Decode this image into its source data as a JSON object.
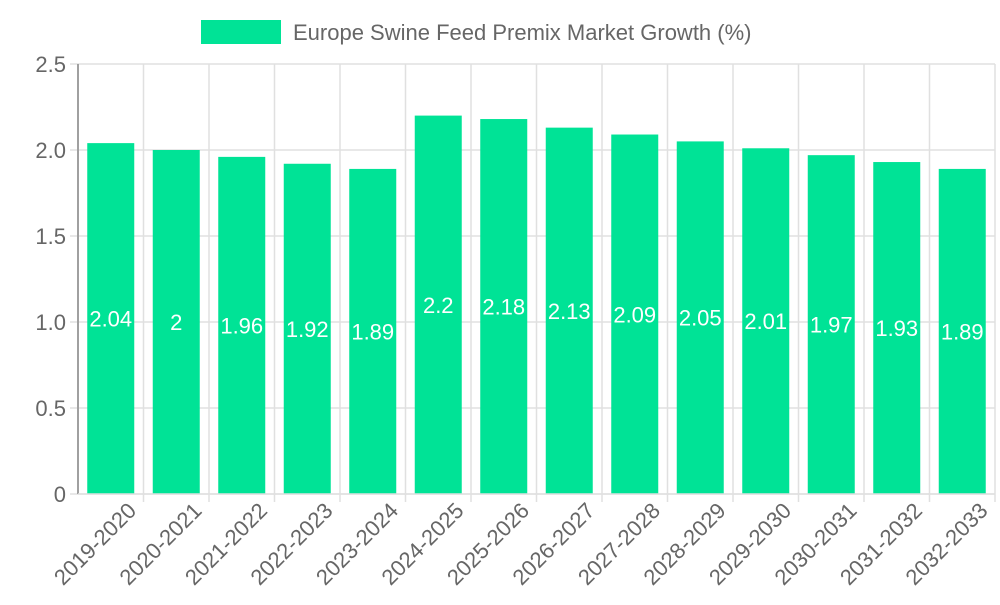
{
  "chart_data": {
    "type": "bar",
    "title": "",
    "legend": {
      "label": "Europe Swine Feed Premix Market Growth (%)",
      "placement": "top-center"
    },
    "categories": [
      "2019-2020",
      "2020-2021",
      "2021-2022",
      "2022-2023",
      "2023-2024",
      "2024-2025",
      "2025-2026",
      "2026-2027",
      "2027-2028",
      "2028-2029",
      "2029-2030",
      "2030-2031",
      "2031-2032",
      "2032-2033"
    ],
    "series": [
      {
        "name": "Europe Swine Feed Premix Market Growth (%)",
        "values": [
          2.04,
          2,
          1.96,
          1.92,
          1.89,
          2.2,
          2.18,
          2.13,
          2.09,
          2.05,
          2.01,
          1.97,
          1.93,
          1.89
        ]
      }
    ],
    "data_labels": [
      "2.04",
      "2",
      "1.96",
      "1.92",
      "1.89",
      "2.2",
      "2.18",
      "2.13",
      "2.09",
      "2.05",
      "2.01",
      "1.97",
      "1.93",
      "1.89"
    ],
    "yticks": [
      "0",
      "0.5",
      "1.0",
      "1.5",
      "2.0",
      "2.5"
    ],
    "ytick_values": [
      0,
      0.5,
      1,
      1.5,
      2,
      2.5
    ],
    "xlabel": "",
    "ylabel": "",
    "ylim": [
      0,
      2.5
    ],
    "grid": true,
    "colors": {
      "bar": "#00e396",
      "grid": "#e0e0e0",
      "axis": "#a0a0a0",
      "text": "#666666",
      "label": "#ffffff"
    }
  }
}
